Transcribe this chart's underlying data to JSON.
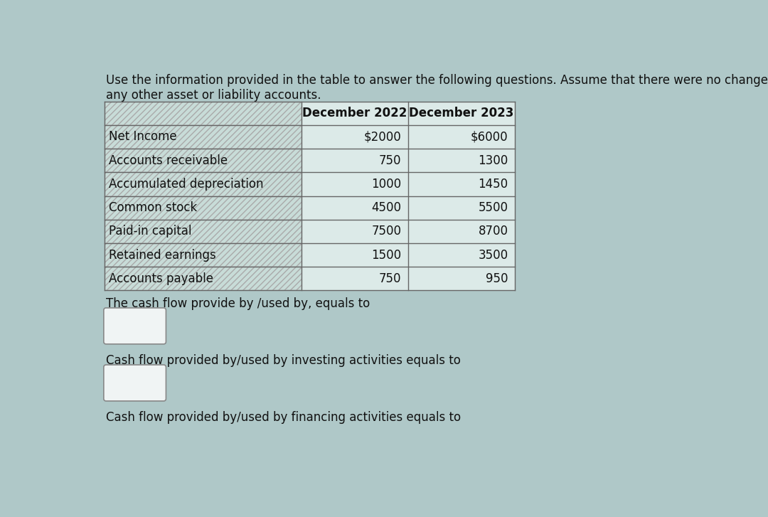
{
  "title_line1": "Use the information provided in the table to answer the following questions. Assume that there were no changes in",
  "title_line2": "any other asset or liability accounts.",
  "col_headers": [
    "",
    "December 2022",
    "December 2023"
  ],
  "rows": [
    [
      "Net Income",
      "$2000",
      "$6000"
    ],
    [
      "Accounts receivable",
      "750",
      "1300"
    ],
    [
      "Accumulated depreciation",
      "1000",
      "1450"
    ],
    [
      "Common stock",
      "4500",
      "5500"
    ],
    [
      "Paid-in capital",
      "7500",
      "8700"
    ],
    [
      "Retained earnings",
      "1500",
      "3500"
    ],
    [
      "Accounts payable",
      "750",
      "950"
    ]
  ],
  "question1": "The cash flow provide by /used by, equals to",
  "question2": "Cash flow provided by/used by investing activities equals to",
  "question3": "Cash flow provided by/used by financing activities equals to",
  "bg_color": "#afc8c8",
  "table_left_col_color": "#c8dcd8",
  "table_data_col_color": "#dceae8",
  "header_row_color": "#dceae8",
  "text_color": "#111111",
  "border_color": "#666666",
  "box_bg": "#f0f4f4",
  "box_border": "#888888",
  "title_fontsize": 12,
  "table_fontsize": 12,
  "question_fontsize": 12
}
